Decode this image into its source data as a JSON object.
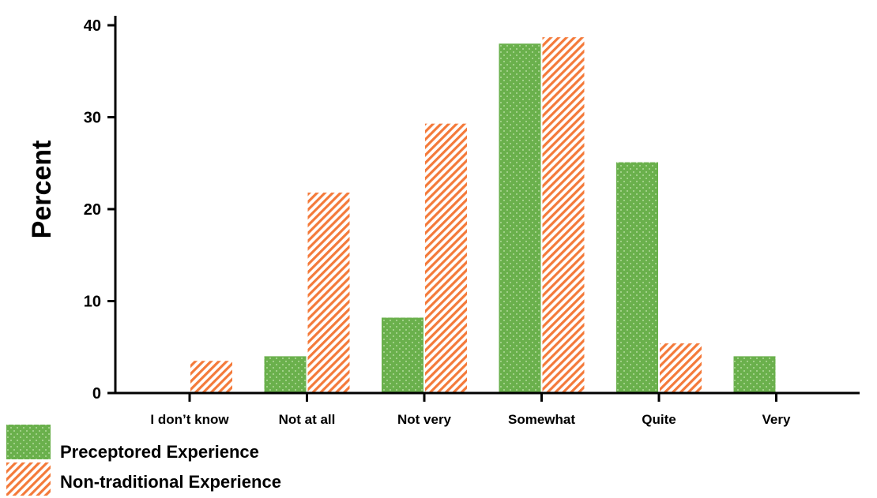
{
  "chart_data": {
    "type": "bar",
    "title": "",
    "xlabel": "",
    "ylabel": "Percent",
    "ylim": [
      0,
      40
    ],
    "yticks": [
      0,
      10,
      20,
      30,
      40
    ],
    "grid": false,
    "legend_position": "bottom-left",
    "categories": [
      "I don’t know",
      "Not at all",
      "Not very",
      "Somewhat",
      "Quite",
      "Very"
    ],
    "series": [
      {
        "name": "Preceptored Experience",
        "values": [
          0,
          4.0,
          8.2,
          38.0,
          25.1,
          4.0
        ],
        "color": "#6ab04c",
        "pattern": "dots"
      },
      {
        "name": "Non-traditional Experience",
        "values": [
          3.5,
          21.8,
          29.3,
          38.7,
          5.4,
          0
        ],
        "color": "#f47a3a",
        "pattern": "diagonal-hatch"
      }
    ]
  }
}
